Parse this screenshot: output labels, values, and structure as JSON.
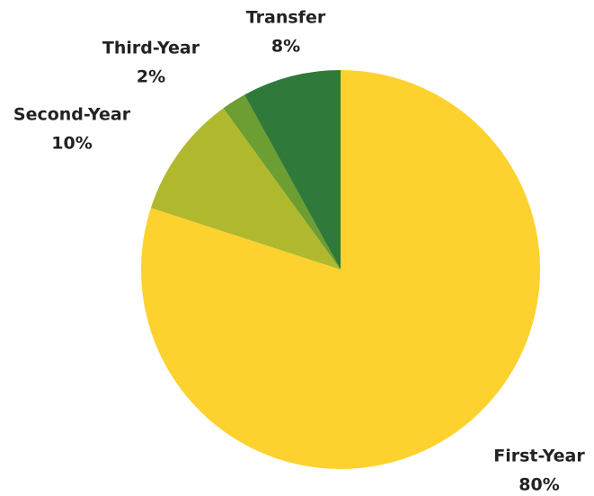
{
  "chart_data": {
    "type": "pie",
    "categories": [
      "First-Year",
      "Second-Year",
      "Third-Year",
      "Transfer"
    ],
    "values": [
      80,
      10,
      2,
      8
    ],
    "value_labels": [
      "80%",
      "10%",
      "2%",
      "8%"
    ],
    "colors": [
      "#fdd22e",
      "#b0b92e",
      "#6c9e32",
      "#2f7a3a"
    ]
  }
}
